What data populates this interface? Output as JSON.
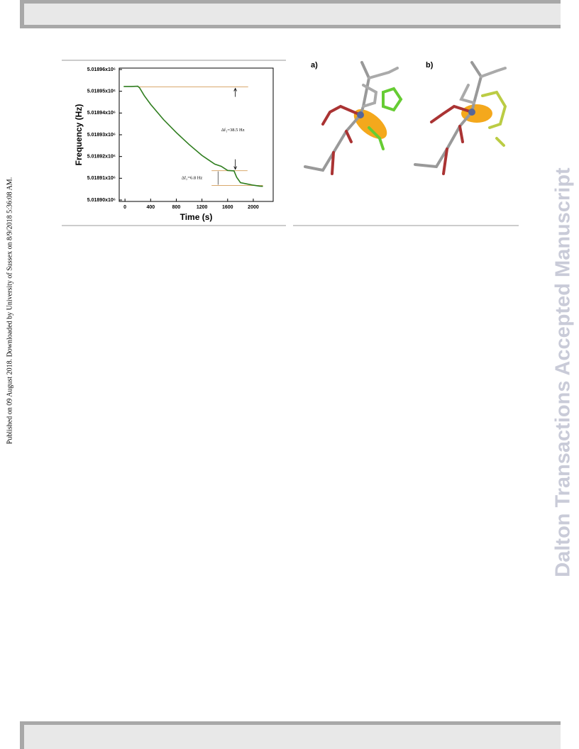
{
  "side_note": "Published on 09 August 2018. Downloaded by University of Sussex on 8/9/2018 5:36:08 AM.",
  "watermark": "Dalton Transactions Accepted Manuscript",
  "panels": [
    "a)",
    "b)"
  ],
  "chart_data": {
    "type": "line",
    "x_label": "Time (s)",
    "y_label": "Frequency (Hz)",
    "xlim": [
      -90,
      2310
    ],
    "xticks": [
      0,
      400,
      800,
      1200,
      1600,
      2000
    ],
    "ylim": [
      5018900,
      5018960
    ],
    "yticks": [
      {
        "value": 5018900,
        "label": "5.01890x10⁶"
      },
      {
        "value": 5018910,
        "label": "5.01891x10⁶"
      },
      {
        "value": 5018920,
        "label": "5.01892x10⁶"
      },
      {
        "value": 5018930,
        "label": "5.01893x10⁶"
      },
      {
        "value": 5018940,
        "label": "5.01894x10⁶"
      },
      {
        "value": 5018950,
        "label": "5.01895x10⁶"
      },
      {
        "value": 5018960,
        "label": "5.01896x10⁶"
      }
    ],
    "series": [
      {
        "name": "frequency",
        "color": "#2e7d1e",
        "x": [
          -20,
          100,
          200,
          230,
          300,
          400,
          600,
          800,
          1000,
          1200,
          1300,
          1400,
          1500,
          1600,
          1700,
          1740,
          1800,
          1900,
          2000,
          2100,
          2150
        ],
        "values": [
          5018952.2,
          5018952.2,
          5018952.3,
          5018951.5,
          5018948,
          5018944,
          5018937,
          5018931,
          5018925.5,
          5018920.5,
          5018918.5,
          5018916.5,
          5018915.5,
          5018913.6,
          5018913.4,
          5018910.5,
          5018908,
          5018907.4,
          5018906.8,
          5018906.4,
          5018906.3
        ]
      }
    ],
    "reference_lines": {
      "color": "#d9a86c",
      "y": [
        5018952,
        5018913.5,
        5018906.7
      ],
      "x_start": [
        200,
        1350,
        1350
      ],
      "x_end": [
        1920,
        1910,
        2150
      ]
    },
    "annotations": [
      "Δf₁=38.5 Hz",
      "Δf₂=6.8 Hz"
    ]
  }
}
